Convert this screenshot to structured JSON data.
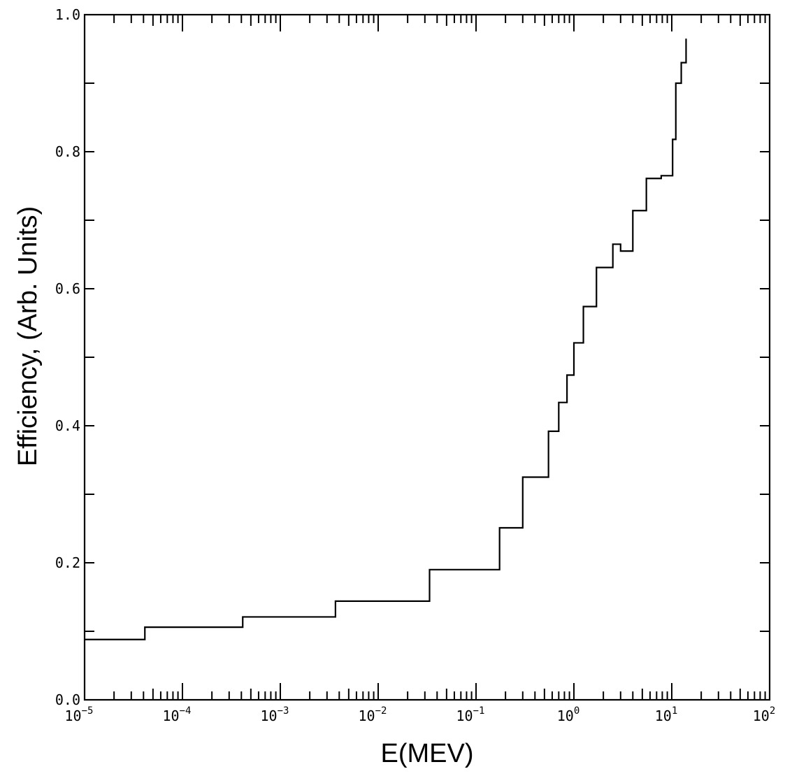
{
  "chart_data": {
    "type": "line",
    "style": "step",
    "xscale": "log",
    "xlabel": "E(MEV)",
    "ylabel": "Efficiency,  (Arb. Units)",
    "xlim": [
      1e-05,
      100
    ],
    "ylim": [
      0.0,
      1.0
    ],
    "grid": false,
    "x_tick_labels": [
      {
        "base": "10",
        "exp": "−5",
        "value": 1e-05
      },
      {
        "base": "10",
        "exp": "−4",
        "value": 0.0001
      },
      {
        "base": "10",
        "exp": "−3",
        "value": 0.001
      },
      {
        "base": "10",
        "exp": "−2",
        "value": 0.01
      },
      {
        "base": "10",
        "exp": "−1",
        "value": 0.1
      },
      {
        "base": "10",
        "exp": "0",
        "value": 1
      },
      {
        "base": "10",
        "exp": "1",
        "value": 10
      },
      {
        "base": "10",
        "exp": "2",
        "value": 100
      }
    ],
    "y_tick_labels": [
      {
        "label": "0.0",
        "value": 0.0
      },
      {
        "label": "0.2",
        "value": 0.2
      },
      {
        "label": "0.4",
        "value": 0.4
      },
      {
        "label": "0.6",
        "value": 0.6
      },
      {
        "label": "0.8",
        "value": 0.8
      },
      {
        "label": "1.0",
        "value": 1.0
      }
    ],
    "bin_edges": [
      1e-05,
      4.13e-05,
      0.000413,
      0.00366,
      0.0335,
      0.174,
      0.3,
      0.55,
      0.7,
      0.85,
      1.0,
      1.25,
      1.7,
      2.5,
      3.0,
      4.0,
      5.5,
      7.8,
      10.2,
      11.0,
      12.5,
      14.0
    ],
    "values": [
      0.088,
      0.106,
      0.121,
      0.144,
      0.19,
      0.251,
      0.325,
      0.392,
      0.434,
      0.474,
      0.521,
      0.574,
      0.631,
      0.665,
      0.655,
      0.714,
      0.761,
      0.765,
      0.818,
      0.9,
      0.93,
      0.965
    ]
  }
}
